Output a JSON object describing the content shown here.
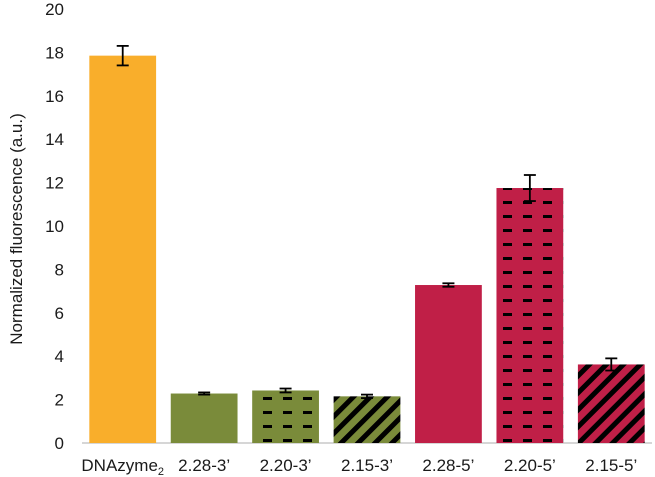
{
  "chart_data": {
    "type": "bar",
    "ylabel": "Normalized fluorescence (a.u.)",
    "xlabel": "",
    "ylim": [
      0,
      20
    ],
    "yticks": [
      0,
      2,
      4,
      6,
      8,
      10,
      12,
      14,
      16,
      18,
      20
    ],
    "grid": false,
    "categories": [
      {
        "label": "DNAzyme",
        "subscript": "2",
        "value": 17.85,
        "error": 0.45,
        "color": "#F9AE2B",
        "pattern": "solid"
      },
      {
        "label": "2.28-3’",
        "value": 2.28,
        "error": 0.05,
        "color": "#7A8B3A",
        "pattern": "solid"
      },
      {
        "label": "2.20-3’",
        "value": 2.42,
        "error": 0.09,
        "color": "#7A8B3A",
        "pattern": "dashes"
      },
      {
        "label": "2.15-3’",
        "value": 2.15,
        "error": 0.08,
        "color": "#7A8B3A",
        "pattern": "diagonal"
      },
      {
        "label": "2.28-5’",
        "value": 7.28,
        "error": 0.08,
        "color": "#C01F47",
        "pattern": "solid"
      },
      {
        "label": "2.20-5’",
        "value": 11.75,
        "error": 0.6,
        "color": "#C01F47",
        "pattern": "dashes"
      },
      {
        "label": "2.15-5’",
        "value": 3.62,
        "error": 0.28,
        "color": "#C01F47",
        "pattern": "diagonal"
      }
    ]
  }
}
